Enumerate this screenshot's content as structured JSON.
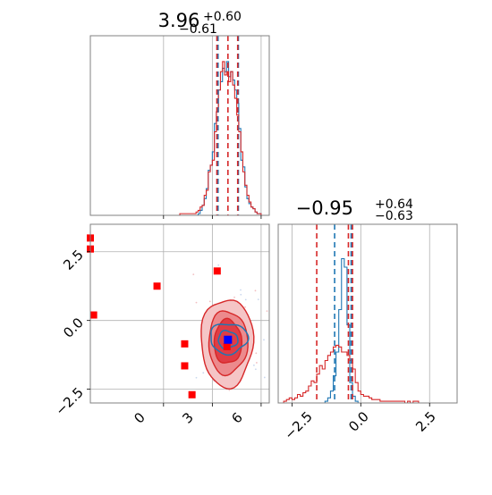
{
  "figure": {
    "type": "corner-plot"
  },
  "colors": {
    "series_a": "#1f77b4",
    "series_b": "#d62728",
    "marker_points": "#ff0000",
    "marker_truth": "#0000ff",
    "grid": "#b0b0b0",
    "frame": "#808080"
  },
  "chart_data": [
    {
      "panel": "top-left",
      "type": "histogram",
      "title": {
        "value": "3.96",
        "plus": "+0.60",
        "minus": "−0.61"
      },
      "xlim": [
        -4.5,
        6.5
      ],
      "x_gridlines": [
        0,
        3,
        6
      ],
      "grid": true,
      "x_ticks_labeled": false,
      "y_ticks_labeled": false,
      "quantile_lines": [
        {
          "color": "#1f77b4",
          "style": "dashed",
          "x": [
            3.35,
            4.6
          ]
        },
        {
          "color": "#d62728",
          "style": "dashed",
          "x": [
            3.28,
            3.96,
            4.56
          ]
        }
      ],
      "series": [
        {
          "color": "#1f77b4",
          "bin_width": 0.125,
          "x": [
            -4.5,
            -4.375,
            -4.25,
            -4.125,
            -4.0,
            -3.875,
            -3.75,
            -3.625,
            -3.5,
            -3.375,
            -3.25,
            -3.125,
            -3.0,
            -2.875,
            -2.75,
            -2.625,
            -2.5,
            -2.375,
            -2.25,
            -2.125,
            -2.0,
            -1.875,
            -1.75,
            -1.625,
            -1.5,
            -1.375,
            -1.25,
            -1.125,
            -1.0,
            -0.875,
            -0.75,
            -0.625,
            -0.5,
            -0.375,
            -0.25,
            -0.125,
            0.0,
            0.125,
            0.25,
            0.375,
            0.5,
            0.625,
            0.75,
            0.875,
            1.0,
            1.125,
            1.25,
            1.375,
            1.5,
            1.625,
            1.75,
            1.875,
            2.0,
            2.125,
            2.25,
            2.375,
            2.5,
            2.625,
            2.75,
            2.875,
            3.0,
            3.125,
            3.25,
            3.375,
            3.5,
            3.625,
            3.75,
            3.875,
            4.0,
            4.125,
            4.25,
            4.375,
            4.5,
            4.625,
            4.75,
            4.875,
            5.0,
            5.125,
            5.25,
            5.375,
            5.5,
            5.625,
            5.75,
            5.875,
            6.0,
            6.125,
            6.25,
            6.375
          ],
          "y": [
            0,
            0,
            0,
            0,
            0,
            0,
            0,
            0,
            0,
            0,
            0,
            0,
            0,
            0,
            0,
            0,
            0,
            0,
            0,
            0,
            0,
            0,
            0,
            0,
            0,
            0,
            0,
            0,
            0,
            0,
            0,
            0,
            0,
            0,
            0,
            0,
            0,
            0,
            0,
            0,
            0,
            0,
            0,
            0,
            0,
            0,
            0,
            0,
            0,
            0,
            0,
            0,
            0,
            0.01,
            0.03,
            0.06,
            0.1,
            0.16,
            0.27,
            0.3,
            0.38,
            0.55,
            0.62,
            0.75,
            0.8,
            0.88,
            0.86,
            0.92,
            0.83,
            0.86,
            0.81,
            0.75,
            0.67,
            0.52,
            0.33,
            0.29,
            0.17,
            0.1,
            0.07,
            0.05,
            0.04,
            0.02,
            0.01,
            0.01,
            0,
            0,
            0,
            0
          ]
        },
        {
          "color": "#d62728",
          "bin_width": 0.125,
          "x": [
            -4.5,
            -4.375,
            -4.25,
            -4.125,
            -4.0,
            -3.875,
            -3.75,
            -3.625,
            -3.5,
            -3.375,
            -3.25,
            -3.125,
            -3.0,
            -2.875,
            -2.75,
            -2.625,
            -2.5,
            -2.375,
            -2.25,
            -2.125,
            -2.0,
            -1.875,
            -1.75,
            -1.625,
            -1.5,
            -1.375,
            -1.25,
            -1.125,
            -1.0,
            -0.875,
            -0.75,
            -0.625,
            -0.5,
            -0.375,
            -0.25,
            -0.125,
            0.0,
            0.125,
            0.25,
            0.375,
            0.5,
            0.625,
            0.75,
            0.875,
            1.0,
            1.125,
            1.25,
            1.375,
            1.5,
            1.625,
            1.75,
            1.875,
            2.0,
            2.125,
            2.25,
            2.375,
            2.5,
            2.625,
            2.75,
            2.875,
            3.0,
            3.125,
            3.25,
            3.375,
            3.5,
            3.625,
            3.75,
            3.875,
            4.0,
            4.125,
            4.25,
            4.375,
            4.5,
            4.625,
            4.75,
            4.875,
            5.0,
            5.125,
            5.25,
            5.375,
            5.5,
            5.625,
            5.75,
            5.875,
            6.0,
            6.125,
            6.25,
            6.375
          ],
          "y": [
            0,
            0,
            0,
            0,
            0,
            0,
            0,
            0,
            0,
            0,
            0,
            0,
            0,
            0,
            0,
            0,
            0,
            0,
            0,
            0,
            0,
            0,
            0,
            0,
            0,
            0,
            0,
            0,
            0,
            0,
            0,
            0,
            0,
            0,
            0,
            0,
            0,
            0,
            0,
            0,
            0,
            0,
            0,
            0,
            0.01,
            0.01,
            0.01,
            0.01,
            0.01,
            0.01,
            0.01,
            0.01,
            0.02,
            0.03,
            0.05,
            0.06,
            0.12,
            0.15,
            0.26,
            0.3,
            0.33,
            0.5,
            0.62,
            0.75,
            0.86,
            0.92,
            0.84,
            0.86,
            0.8,
            0.86,
            0.78,
            0.7,
            0.6,
            0.5,
            0.38,
            0.26,
            0.18,
            0.12,
            0.08,
            0.05,
            0.04,
            0.02,
            0.01,
            0.01,
            0,
            0,
            0,
            0
          ]
        }
      ]
    },
    {
      "panel": "bottom-left",
      "type": "scatter-contour",
      "xlim": [
        -4.5,
        6.5
      ],
      "ylim": [
        -3.0,
        3.5
      ],
      "x_ticks": [
        "0",
        "3",
        "6"
      ],
      "y_ticks": [
        "−2.5",
        "0.0",
        "2.5"
      ],
      "grid": true,
      "red_square_markers": [
        {
          "x": -4.5,
          "y": 3.0
        },
        {
          "x": -4.5,
          "y": 2.6
        },
        {
          "x": -4.3,
          "y": 0.2
        },
        {
          "x": -0.4,
          "y": 1.25
        },
        {
          "x": 3.3,
          "y": 1.8
        },
        {
          "x": 1.3,
          "y": -0.85
        },
        {
          "x": 1.3,
          "y": -1.65
        },
        {
          "x": 1.75,
          "y": -2.7
        },
        {
          "x": 3.9,
          "y": -0.95
        }
      ],
      "truth_marker": {
        "x": 3.96,
        "y": -0.7,
        "color": "#0000ff"
      },
      "red_contours": [
        {
          "center": [
            3.9,
            -0.8
          ],
          "rx": 1.6,
          "ry": 1.6
        },
        {
          "center": [
            3.95,
            -0.8
          ],
          "rx": 1.2,
          "ry": 1.15
        },
        {
          "center": [
            3.95,
            -0.78
          ],
          "rx": 0.85,
          "ry": 0.8
        }
      ],
      "blue_contours": [
        {
          "center": [
            4.0,
            -0.65
          ],
          "rx": 1.15,
          "ry": 0.55
        },
        {
          "center": [
            3.95,
            -0.7
          ],
          "rx": 0.6,
          "ry": 0.32
        }
      ]
    },
    {
      "panel": "bottom-right",
      "type": "histogram",
      "title": {
        "value": "−0.95",
        "plus": "+0.64",
        "minus": "−0.63"
      },
      "xlim": [
        -3.0,
        3.5
      ],
      "x_ticks": [
        "−2.5",
        "0.0",
        "2.5"
      ],
      "grid": true,
      "quantile_lines": [
        {
          "color": "#1f77b4",
          "style": "dashed",
          "x": [
            -0.95,
            -0.35
          ]
        },
        {
          "color": "#d62728",
          "style": "dashed",
          "x": [
            -1.6,
            -0.3,
            -0.45
          ]
        }
      ],
      "series": [
        {
          "color": "#1f77b4",
          "bin_width": 0.1,
          "x": [
            -3.0,
            -2.9,
            -2.8,
            -2.7,
            -2.6,
            -2.5,
            -2.4,
            -2.3,
            -2.2,
            -2.1,
            -2.0,
            -1.9,
            -1.8,
            -1.7,
            -1.6,
            -1.5,
            -1.4,
            -1.3,
            -1.2,
            -1.1,
            -1.0,
            -0.9,
            -0.8,
            -0.7,
            -0.6,
            -0.5,
            -0.4,
            -0.3,
            -0.2,
            -0.1,
            0.0,
            0.1,
            0.2,
            0.3,
            0.4,
            0.5,
            0.6,
            0.7,
            0.8,
            0.9,
            1.0,
            1.1,
            1.2,
            1.3,
            1.4,
            1.5,
            1.6,
            1.7,
            1.8,
            1.9,
            2.0,
            2.1,
            2.2,
            2.3,
            2.4,
            2.5,
            2.6,
            2.7,
            2.8,
            2.9,
            3.0,
            3.1,
            3.2,
            3.3,
            3.4
          ],
          "y": [
            0,
            0,
            0,
            0,
            0,
            0,
            0,
            0,
            0,
            0,
            0,
            0,
            0,
            0,
            0,
            0,
            0,
            0.01,
            0.03,
            0.07,
            0.16,
            0.3,
            0.55,
            0.85,
            0.8,
            0.46,
            0.12,
            0.04,
            0.01,
            0,
            0,
            0,
            0,
            0,
            0,
            0,
            0,
            0,
            0,
            0,
            0,
            0,
            0,
            0,
            0,
            0,
            0,
            0,
            0,
            0,
            0,
            0,
            0,
            0,
            0,
            0,
            0,
            0,
            0,
            0,
            0,
            0,
            0,
            0,
            0
          ]
        },
        {
          "color": "#d62728",
          "bin_width": 0.1,
          "x": [
            -3.0,
            -2.9,
            -2.8,
            -2.7,
            -2.6,
            -2.5,
            -2.4,
            -2.3,
            -2.2,
            -2.1,
            -2.0,
            -1.9,
            -1.8,
            -1.7,
            -1.6,
            -1.5,
            -1.4,
            -1.3,
            -1.2,
            -1.1,
            -1.0,
            -0.9,
            -0.8,
            -0.7,
            -0.6,
            -0.5,
            -0.4,
            -0.3,
            -0.2,
            -0.1,
            0.0,
            0.1,
            0.2,
            0.3,
            0.4,
            0.5,
            0.6,
            0.7,
            0.8,
            0.9,
            1.0,
            1.1,
            1.2,
            1.3,
            1.4,
            1.5,
            1.6,
            1.7,
            1.8,
            1.9,
            2.0,
            2.1,
            2.2,
            2.3,
            2.4,
            2.5,
            2.6,
            2.7,
            2.8,
            2.9,
            3.0,
            3.1,
            3.2,
            3.3,
            3.4
          ],
          "y": [
            0,
            0,
            0.01,
            0.02,
            0.03,
            0.02,
            0.03,
            0.05,
            0.04,
            0.06,
            0.07,
            0.1,
            0.13,
            0.12,
            0.17,
            0.22,
            0.2,
            0.25,
            0.28,
            0.3,
            0.33,
            0.34,
            0.33,
            0.3,
            0.3,
            0.28,
            0.25,
            0.2,
            0.12,
            0.07,
            0.05,
            0.04,
            0.04,
            0.03,
            0.02,
            0.02,
            0.02,
            0.01,
            0.01,
            0.01,
            0.01,
            0.01,
            0.01,
            0.01,
            0.01,
            0.01,
            0,
            0.01,
            0,
            0.01,
            0.01,
            0,
            0,
            0,
            0,
            0,
            0,
            0,
            0,
            0,
            0,
            0,
            0,
            0,
            0
          ]
        }
      ]
    }
  ]
}
